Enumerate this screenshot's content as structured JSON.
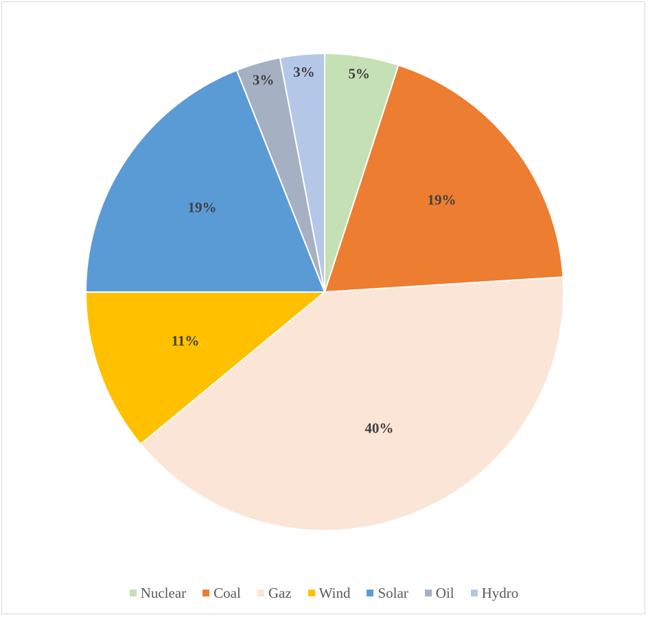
{
  "chart_data": {
    "type": "pie",
    "title": "",
    "categories": [
      "Nuclear",
      "Coal",
      "Gaz",
      "Wind",
      "Solar",
      "Oil",
      "Hydro"
    ],
    "values": [
      5,
      19,
      40,
      11,
      19,
      3,
      3
    ],
    "labels": [
      "5%",
      "19%",
      "40%",
      "11%",
      "19%",
      "3%",
      "3%"
    ],
    "colors": [
      "#c5e0b4",
      "#ed7d31",
      "#fbe5d6",
      "#ffc000",
      "#5b9bd5",
      "#a5b1c2",
      "#b4c7e7"
    ],
    "legend_position": "bottom",
    "start_angle_deg": 0,
    "direction": "clockwise"
  }
}
